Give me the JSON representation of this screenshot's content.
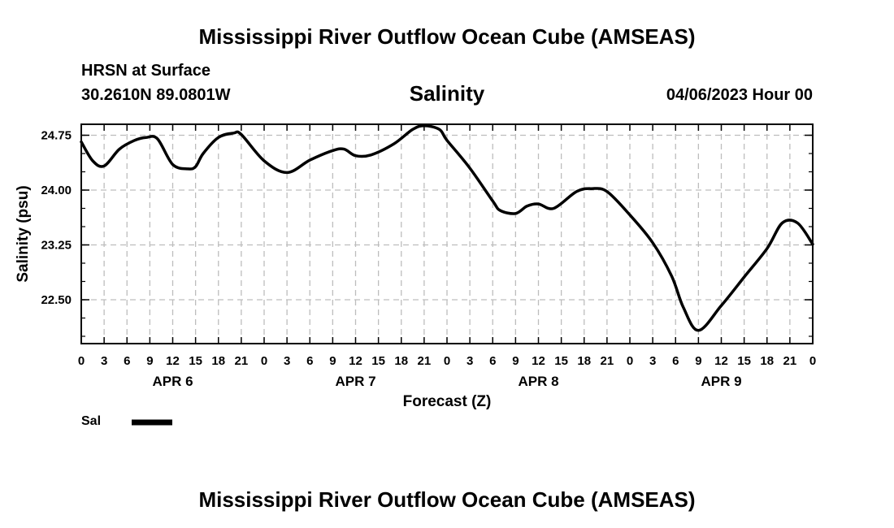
{
  "header": {
    "title_top": "Mississippi River Outflow Ocean Cube (AMSEAS)",
    "station": "HRSN at Surface",
    "location": "30.2610N  89.0801W",
    "datetime": "04/06/2023 Hour 00"
  },
  "footer": {
    "title_bottom": "Mississippi River Outflow Ocean Cube (AMSEAS)"
  },
  "legend": {
    "label": "Sal",
    "color": "#000000"
  },
  "chart_data": {
    "type": "line",
    "title": "Salinity",
    "xlabel": "Forecast (Z)",
    "ylabel": "Salinity (psu)",
    "xlim": [
      0,
      96
    ],
    "ylim": [
      21.9,
      24.9
    ],
    "grid": true,
    "yticks": [
      "24.75",
      "24.00",
      "23.25",
      "22.50"
    ],
    "ytick_values": [
      24.75,
      24.0,
      23.25,
      22.5
    ],
    "xtick_labels": [
      "0",
      "3",
      "6",
      "9",
      "12",
      "15",
      "18",
      "21",
      "0",
      "3",
      "6",
      "9",
      "12",
      "15",
      "18",
      "21",
      "0",
      "3",
      "6",
      "9",
      "12",
      "15",
      "18",
      "21",
      "0",
      "3",
      "6",
      "9",
      "12",
      "15",
      "18",
      "21",
      "0"
    ],
    "day_labels": [
      "APR 6",
      "APR 7",
      "APR 8",
      "APR 9"
    ],
    "day_label_hours": [
      12,
      36,
      60,
      84
    ],
    "series": [
      {
        "name": "Sal",
        "x": [
          0,
          1.5,
          3,
          5,
          7,
          8.5,
          10,
          12,
          14,
          15,
          16,
          18,
          20,
          21,
          24,
          27,
          30,
          33,
          34.5,
          36,
          38,
          41,
          43.5,
          45,
          47,
          48,
          51,
          54,
          55,
          57,
          58.5,
          60,
          62,
          65,
          67,
          69,
          72,
          75,
          77.5,
          79,
          81,
          84,
          87,
          90,
          92,
          94,
          96
        ],
        "values": [
          24.66,
          24.4,
          24.33,
          24.56,
          24.68,
          24.72,
          24.7,
          24.35,
          24.29,
          24.32,
          24.5,
          24.72,
          24.78,
          24.76,
          24.4,
          24.24,
          24.41,
          24.54,
          24.56,
          24.47,
          24.48,
          24.63,
          24.83,
          24.88,
          24.83,
          24.68,
          24.3,
          23.85,
          23.72,
          23.68,
          23.78,
          23.81,
          23.75,
          23.98,
          24.02,
          23.98,
          23.66,
          23.28,
          22.82,
          22.4,
          22.08,
          22.42,
          22.81,
          23.2,
          23.55,
          23.55,
          23.26
        ]
      }
    ]
  }
}
